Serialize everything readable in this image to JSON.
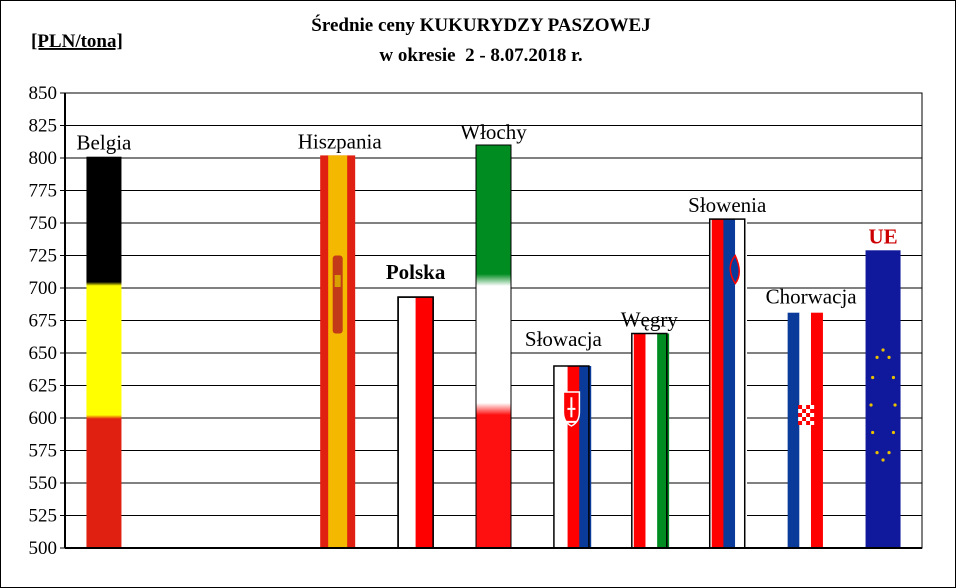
{
  "chart_data": {
    "type": "bar",
    "title": "Średnie ceny KUKURYDZY PASZOWEJ",
    "subtitle": "w okresie  2 - 8.07.2018 r.",
    "ylabel": "[PLN/tona]",
    "xlabel": "",
    "ylim": [
      500,
      850
    ],
    "ytick_step": 25,
    "grid": true,
    "categories": [
      "Belgia",
      "",
      "",
      "Hiszpania",
      "Polska",
      "Włochy",
      "Słowacja",
      "Węgry",
      "Słowenia",
      "Chorwacja",
      "UE"
    ],
    "values": [
      801,
      500,
      500,
      802,
      693,
      810,
      640,
      665,
      753,
      681,
      729
    ],
    "bar_styles": [
      "belgium-flag",
      "empty",
      "empty",
      "spain-flag",
      "poland-flag",
      "italy-flag",
      "slovakia-flag",
      "hungary-flag",
      "slovenia-flag",
      "croatia-flag",
      "eu-flag"
    ],
    "label_emphasis": [
      "normal",
      "normal",
      "normal",
      "normal",
      "bold",
      "normal",
      "normal",
      "normal",
      "normal",
      "normal",
      "bold-red"
    ]
  },
  "colors": {
    "black": "#000000",
    "yellow": "#ffff00",
    "red": "#e02010",
    "flag_red": "#ff0000",
    "green": "#008c20",
    "blue": "#0a3a9a",
    "eu_blue": "#10189c",
    "eu_star": "#e8c000",
    "spain_yellow": "#f5b800",
    "ue_label": "#cc0000"
  }
}
